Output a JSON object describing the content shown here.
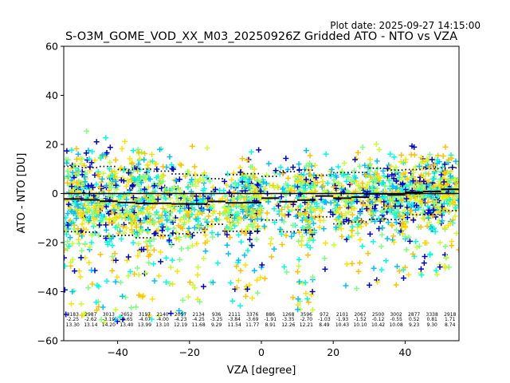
{
  "chart_data": {
    "type": "scatter",
    "plot_date": "Plot date: 2025-09-27 14:15:00",
    "title": "S-O3M_GOME_VOD_XX_M03_20250926Z Gridded ATO - NTO vs VZA",
    "xlabel": "VZA [degree]",
    "ylabel": "ATO - NTO [DU]",
    "xlim": [
      -55,
      55
    ],
    "ylim": [
      -60,
      60
    ],
    "xticks": [
      -40,
      -20,
      0,
      20,
      40
    ],
    "yticks": [
      -60,
      -40,
      -20,
      0,
      20,
      40,
      60
    ],
    "marker": "+",
    "colors": [
      "#0000cd",
      "#00bfff",
      "#00ffe0",
      "#7fff7f",
      "#c8ff32",
      "#ffe100",
      "#ffc000"
    ],
    "bin_centers": [
      -52.5,
      -47.5,
      -42.5,
      -37.5,
      -32.5,
      -27.5,
      -22.5,
      -17.5,
      -12.5,
      -7.5,
      -2.5,
      2.5,
      7.5,
      12.5,
      17.5,
      22.5,
      27.5,
      32.5,
      37.5,
      42.5,
      47.5,
      52.5
    ],
    "stats": [
      {
        "count": "3183",
        "mean": "-2.25",
        "std": "13.30"
      },
      {
        "count": "2987",
        "mean": "-2.62",
        "std": "13.14"
      },
      {
        "count": "3013",
        "mean": "-3.19",
        "std": "14.20"
      },
      {
        "count": "2652",
        "mean": "-3.65",
        "std": "13.40"
      },
      {
        "count": "3197",
        "mean": "-4.07",
        "std": "13.99"
      },
      {
        "count": "2140",
        "mean": "-4.00",
        "std": "13.10"
      },
      {
        "count": "2057",
        "mean": "-4.23",
        "std": "12.19"
      },
      {
        "count": "2134",
        "mean": "-4.25",
        "std": "11.68"
      },
      {
        "count": "936",
        "mean": "-3.25",
        "std": "9.29"
      },
      {
        "count": "2111",
        "mean": "-3.84",
        "std": "11.54"
      },
      {
        "count": "3376",
        "mean": "-3.69",
        "std": "11.77"
      },
      {
        "count": "886",
        "mean": "-1.91",
        "std": "8.91"
      },
      {
        "count": "1268",
        "mean": "-3.35",
        "std": "12.26"
      },
      {
        "count": "3596",
        "mean": "-2.70",
        "std": "12.21"
      },
      {
        "count": "972",
        "mean": "-1.03",
        "std": "8.49"
      },
      {
        "count": "2101",
        "mean": "-1.93",
        "std": "10.43"
      },
      {
        "count": "2067",
        "mean": "-1.52",
        "std": "10.10"
      },
      {
        "count": "2500",
        "mean": "-0.12",
        "std": "10.42"
      },
      {
        "count": "3002",
        "mean": "-0.55",
        "std": "10.08"
      },
      {
        "count": "2877",
        "mean": "0.52",
        "std": "9.23"
      },
      {
        "count": "3338",
        "mean": "0.81",
        "std": "9.30"
      },
      {
        "count": "2918",
        "mean": "1.71",
        "std": "8.74"
      }
    ]
  }
}
